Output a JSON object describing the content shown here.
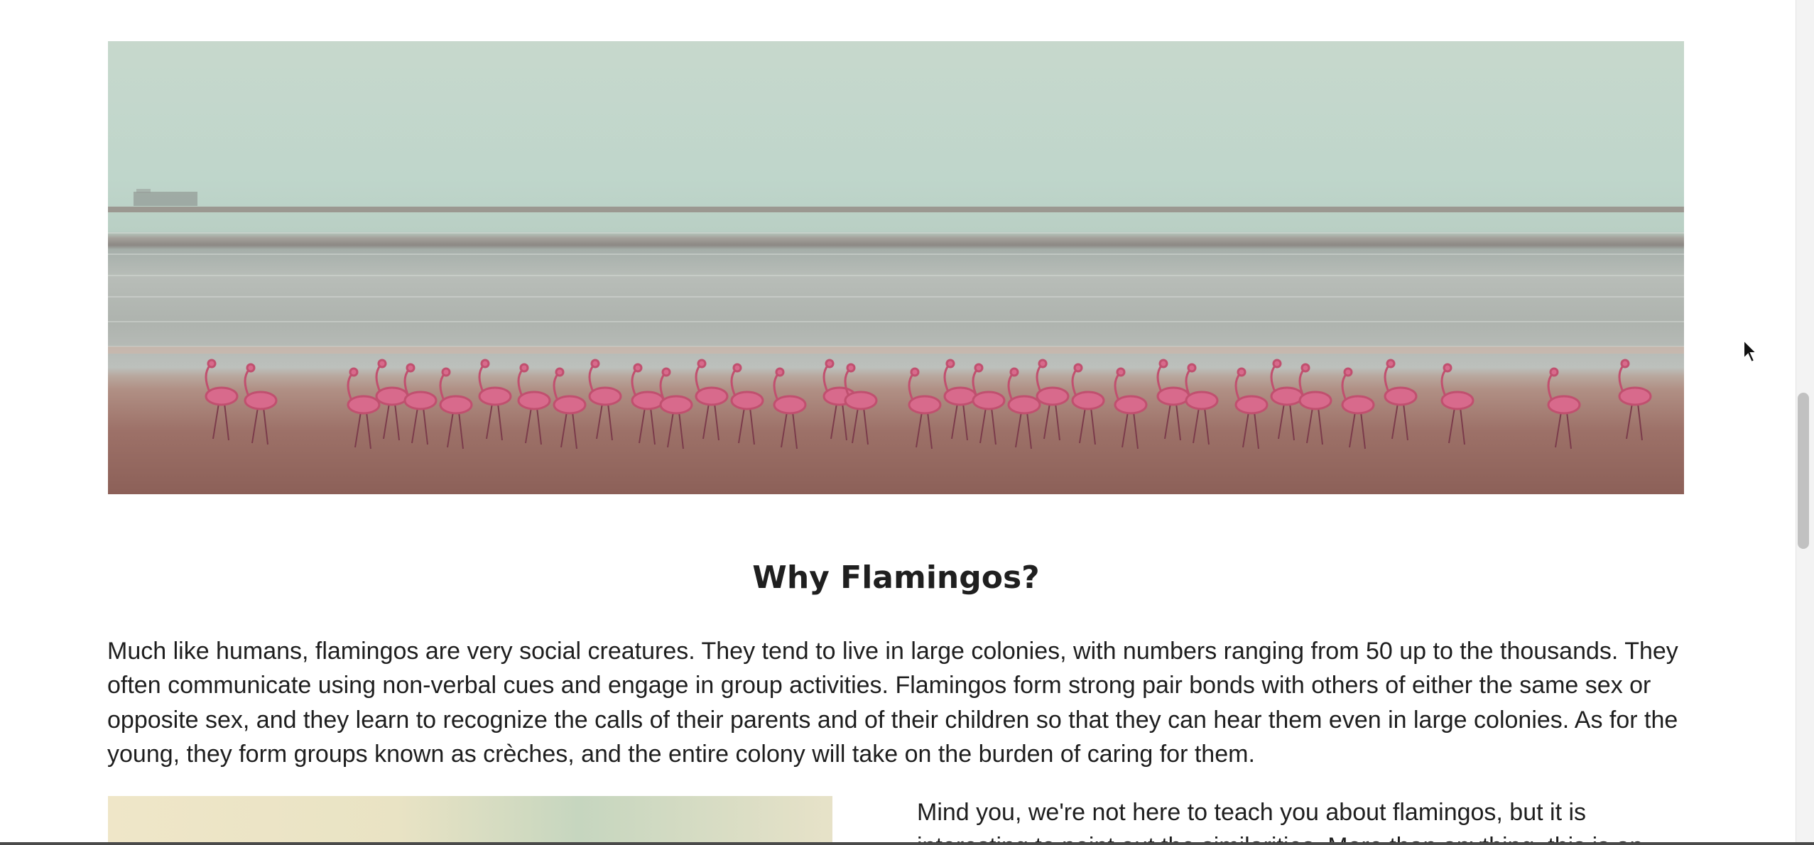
{
  "article": {
    "hero_alt": "Flock of flamingos walking along a beach",
    "heading": "Why Flamingos?",
    "paragraph": "Much like humans, flamingos are very social creatures. They tend to live in large colonies, with numbers ranging from 50 up to the thousands. They often communicate using non-verbal cues and engage in group activities. Flamingos form strong pair bonds with others of either the same sex or opposite sex, and they learn to recognize the calls of their parents and of their children so that they can hear them even in large colonies. As for the young, they form groups known as crèches, and the entire colony will take on the burden of caring for them.",
    "side_paragraph": "Mind you, we're not here to teach you about flamingos, but it is interesting to point out the similarities. More than anything, this is an"
  },
  "colors": {
    "text": "#1e1e1e",
    "flamingo": "#d86a8c",
    "sand": "#9d7168",
    "sky": "#c7d8cc"
  },
  "icons": {
    "cursor": "arrow-cursor-icon"
  }
}
